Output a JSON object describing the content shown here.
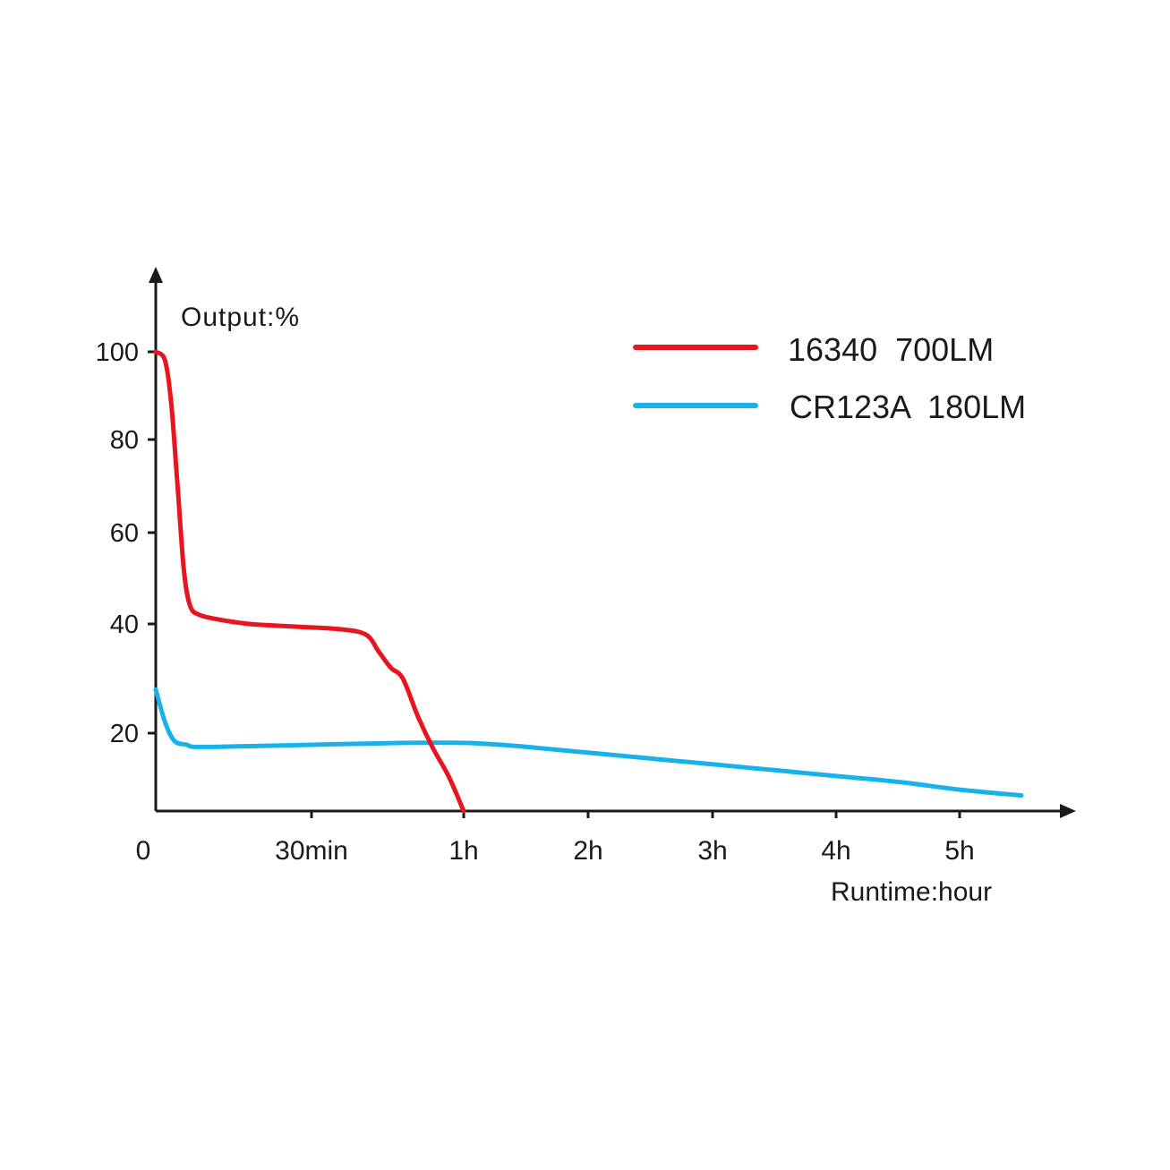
{
  "chart_data": {
    "type": "line",
    "ylabel": "Output:%",
    "xlabel": "Runtime:hour",
    "y_ticks": [
      {
        "value": 100,
        "label": "100"
      },
      {
        "value": 80,
        "label": "80"
      },
      {
        "value": 60,
        "label": "60"
      },
      {
        "value": 40,
        "label": "40"
      },
      {
        "value": 20,
        "label": "20"
      }
    ],
    "x_ticks": [
      {
        "value": 0,
        "label": "0"
      },
      {
        "value": 0.5,
        "label": "30min"
      },
      {
        "value": 1,
        "label": "1h"
      },
      {
        "value": 2,
        "label": "2h"
      },
      {
        "value": 3,
        "label": "3h"
      },
      {
        "value": 4,
        "label": "4h"
      },
      {
        "value": 5,
        "label": "5h"
      }
    ],
    "legend_position": "top-right",
    "grid": false,
    "series": [
      {
        "name": "16340  700LM",
        "color": "#e8141e",
        "points": [
          [
            0.0,
            100
          ],
          [
            0.03,
            98
          ],
          [
            0.05,
            88
          ],
          [
            0.07,
            70
          ],
          [
            0.09,
            52
          ],
          [
            0.11,
            44
          ],
          [
            0.14,
            42
          ],
          [
            0.2,
            41
          ],
          [
            0.3,
            40
          ],
          [
            0.45,
            39.5
          ],
          [
            0.6,
            39
          ],
          [
            0.68,
            38
          ],
          [
            0.72,
            35
          ],
          [
            0.76,
            32
          ],
          [
            0.8,
            30
          ],
          [
            0.85,
            23
          ],
          [
            0.9,
            16
          ],
          [
            0.95,
            9
          ],
          [
            1.0,
            0
          ]
        ]
      },
      {
        "name": "CR123A  180LM",
        "color": "#16b2e8",
        "points": [
          [
            0.0,
            28
          ],
          [
            0.03,
            22
          ],
          [
            0.06,
            18
          ],
          [
            0.1,
            17
          ],
          [
            0.12,
            16.5
          ],
          [
            0.2,
            16.5
          ],
          [
            0.5,
            17
          ],
          [
            0.8,
            17.5
          ],
          [
            1.0,
            17.5
          ],
          [
            1.3,
            17
          ],
          [
            1.5,
            16.5
          ],
          [
            2.0,
            15
          ],
          [
            2.5,
            13.5
          ],
          [
            3.0,
            12
          ],
          [
            3.5,
            10.5
          ],
          [
            4.0,
            9
          ],
          [
            4.5,
            7.5
          ],
          [
            5.0,
            5.5
          ],
          [
            5.5,
            4
          ]
        ]
      }
    ]
  }
}
